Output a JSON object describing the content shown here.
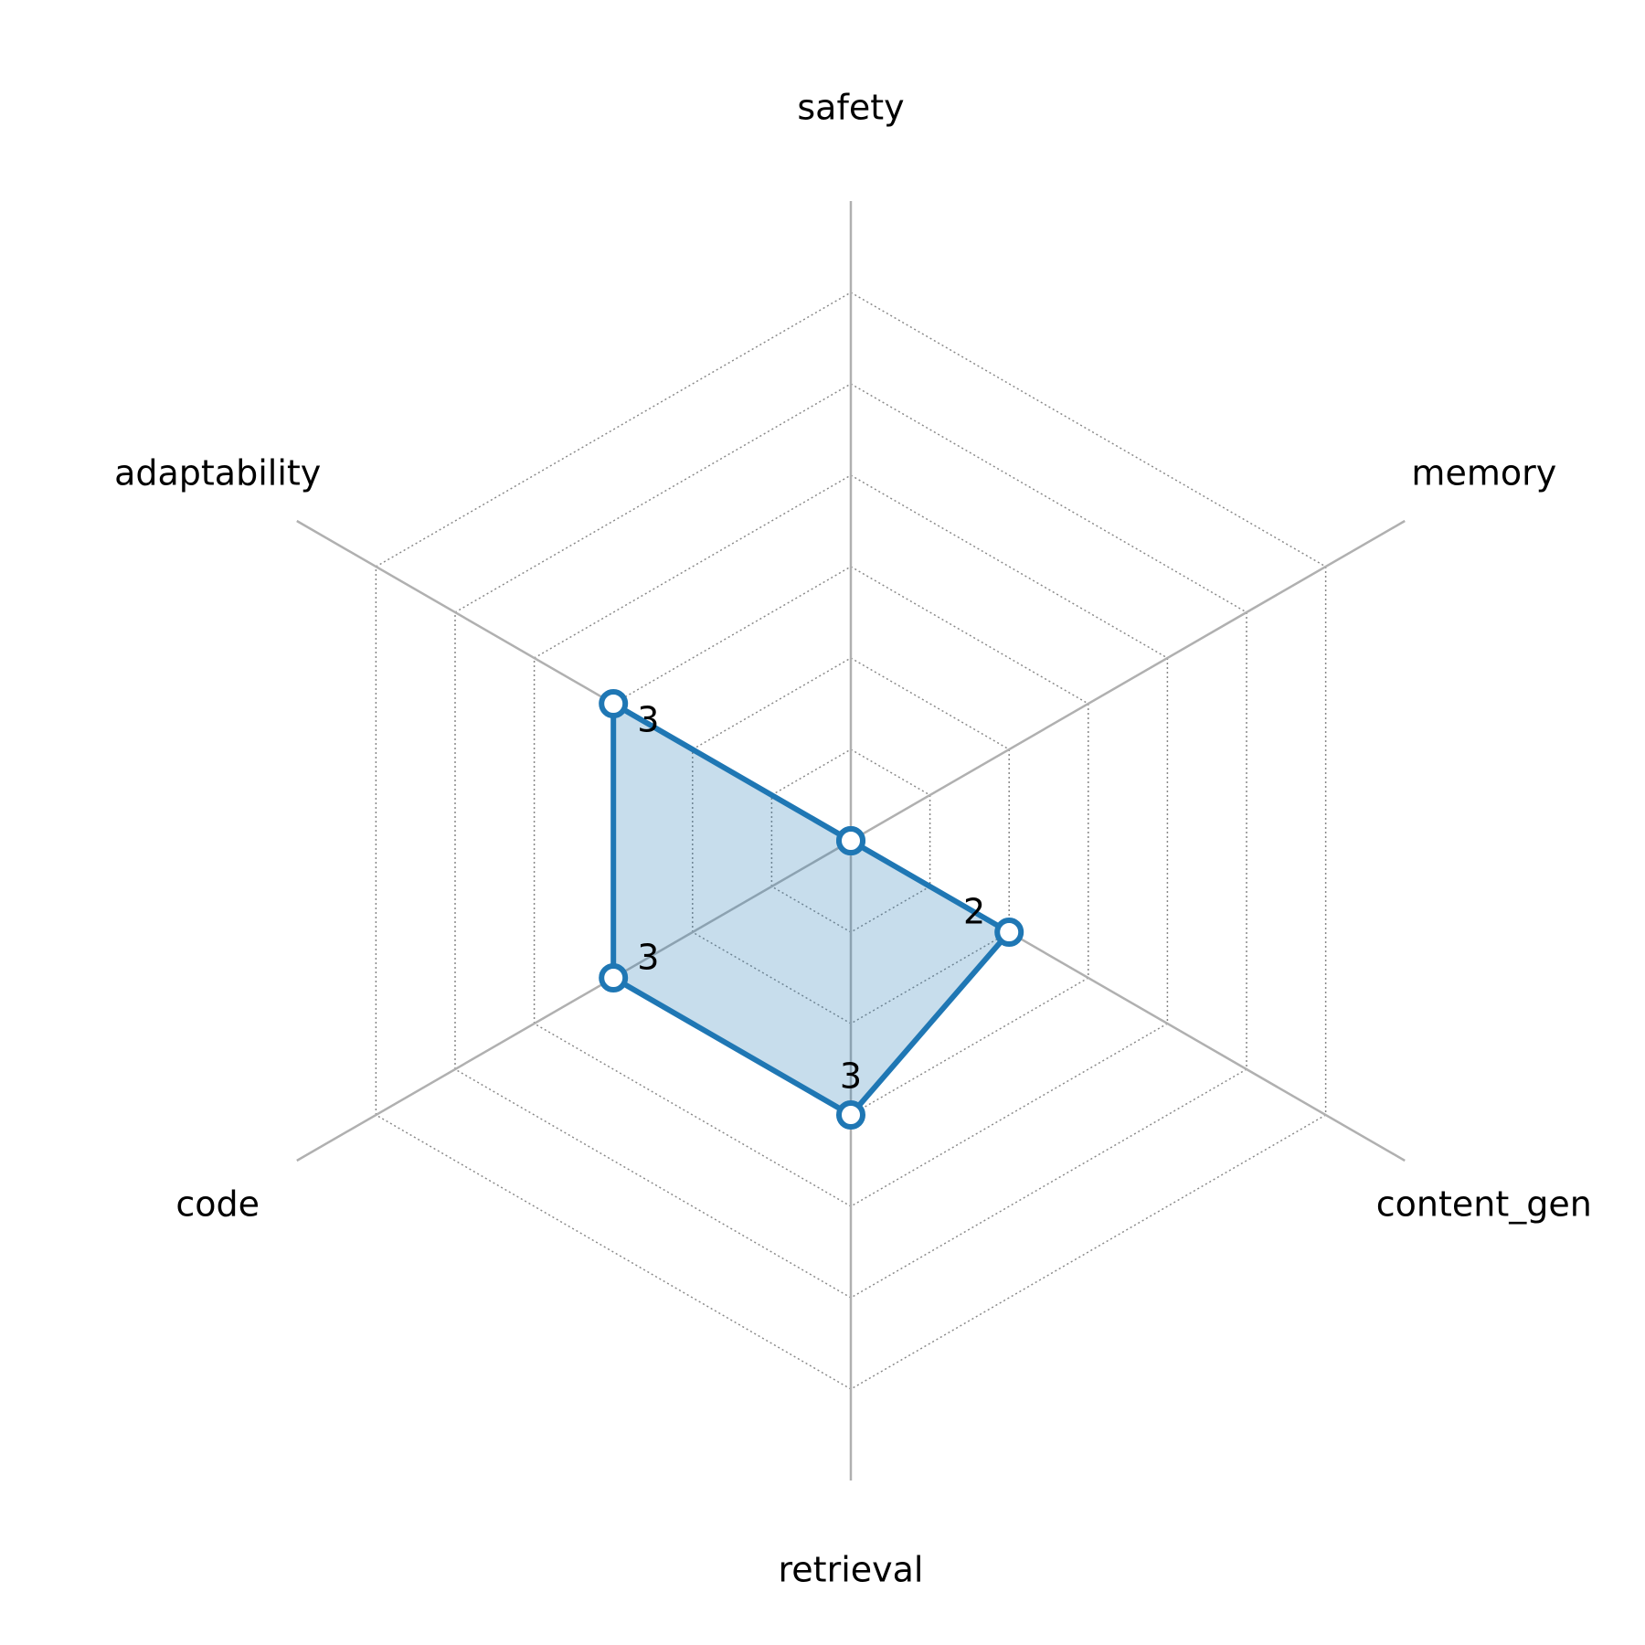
{
  "chart_data": {
    "type": "radar",
    "categories": [
      "safety",
      "memory",
      "content_gen",
      "retrieval",
      "code",
      "adaptability"
    ],
    "values": [
      0,
      0,
      2,
      3,
      3,
      3
    ],
    "value_labels": [
      null,
      null,
      "2",
      "3",
      "3",
      "3"
    ],
    "color": "#1f77b4",
    "ylim": [
      0,
      7
    ],
    "yticks": [
      1,
      2,
      3,
      4,
      5,
      6
    ],
    "grid": true
  }
}
